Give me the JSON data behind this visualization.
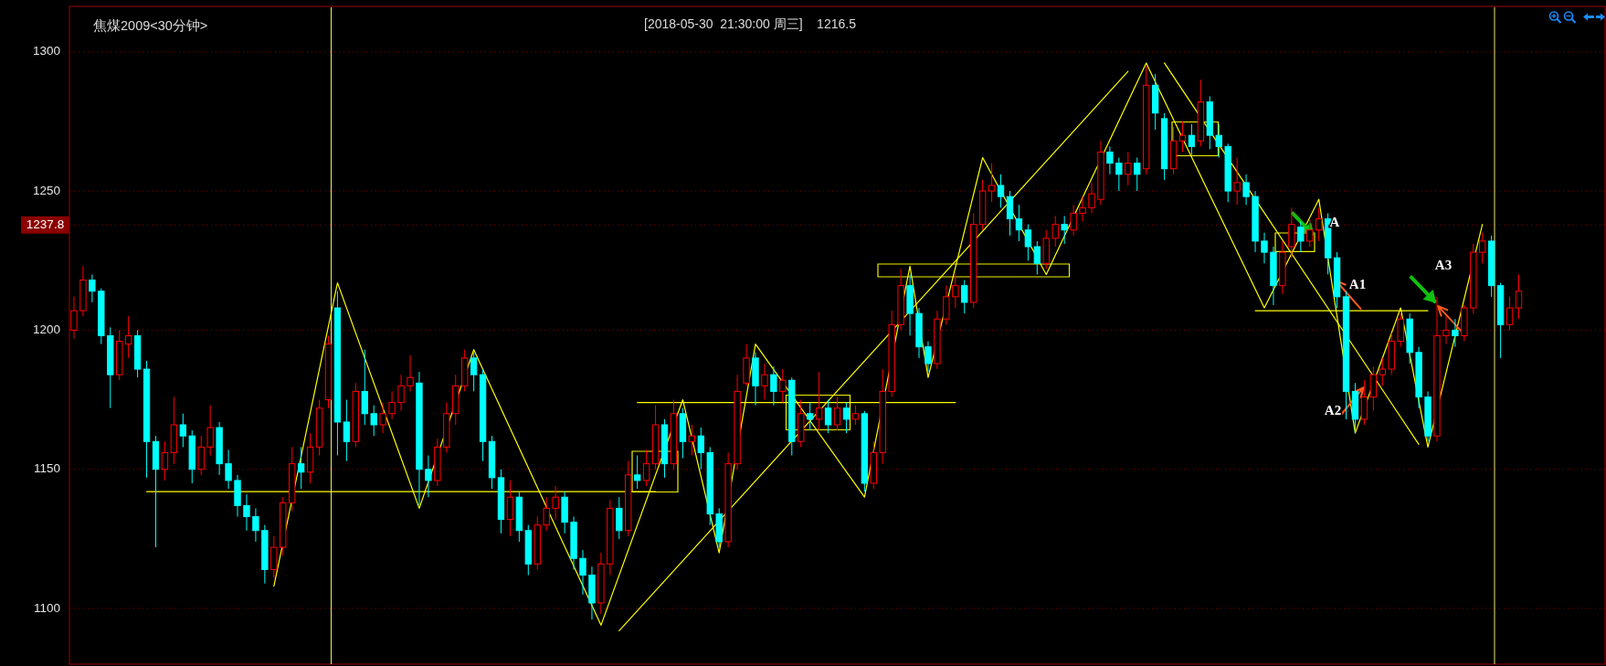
{
  "chart_data": {
    "type": "candlestick",
    "title": "焦煤2009<30分钟>",
    "subtitle": "[2018-05-30  21:30:00 周三]    1216.5",
    "categories": [
      null,
      null,
      null,
      null,
      null,
      null,
      null,
      null,
      null,
      null,
      null,
      null,
      null,
      null,
      null,
      null,
      null,
      null,
      null,
      null,
      null,
      null,
      null,
      null,
      null,
      null,
      null,
      null,
      null,
      null,
      null,
      null,
      null,
      null,
      null,
      null,
      null,
      null,
      null,
      null,
      null,
      null,
      null,
      null,
      null,
      null,
      null,
      null,
      null,
      null,
      null,
      null,
      null,
      null,
      null,
      null,
      null,
      null,
      null,
      null,
      null,
      null,
      null,
      null,
      null,
      null,
      null,
      null,
      null,
      null,
      null,
      null,
      null,
      null,
      null,
      null,
      null,
      null,
      null,
      null,
      null,
      null,
      null,
      null,
      null,
      null,
      null,
      null,
      null,
      null,
      null,
      null,
      null,
      null,
      null,
      null,
      null,
      null,
      null,
      null,
      null,
      null,
      null,
      null,
      null,
      null,
      null,
      null,
      null,
      null,
      null,
      null,
      null,
      null,
      null,
      null,
      null,
      null,
      null,
      null,
      null,
      null,
      null,
      null,
      null,
      null,
      null,
      null,
      null,
      null,
      null,
      null,
      null,
      null,
      null,
      null,
      null,
      null,
      null,
      null,
      null,
      null,
      null,
      null,
      null,
      null,
      null,
      null,
      null,
      null,
      null,
      null,
      null,
      null,
      null,
      null,
      null,
      null,
      null,
      null,
      null,
      null,
      null,
      null,
      null,
      null,
      null,
      null,
      null
    ],
    "ohlc": [
      [
        1200,
        1212,
        1197,
        1207
      ],
      [
        1207,
        1223,
        1205,
        1218
      ],
      [
        1218,
        1220,
        1210,
        1214
      ],
      [
        1214,
        1215,
        1195,
        1198
      ],
      [
        1198,
        1201,
        1172,
        1184
      ],
      [
        1184,
        1200,
        1182,
        1196
      ],
      [
        1195,
        1205,
        1190,
        1198
      ],
      [
        1198,
        1200,
        1183,
        1186
      ],
      [
        1186,
        1189,
        1147,
        1160
      ],
      [
        1160,
        1162,
        1122,
        1150
      ],
      [
        1150,
        1160,
        1146,
        1156
      ],
      [
        1156,
        1176,
        1152,
        1166
      ],
      [
        1166,
        1170,
        1158,
        1162
      ],
      [
        1162,
        1164,
        1145,
        1150
      ],
      [
        1150,
        1162,
        1148,
        1158
      ],
      [
        1158,
        1173,
        1155,
        1165
      ],
      [
        1165,
        1167,
        1148,
        1152
      ],
      [
        1152,
        1157,
        1143,
        1146
      ],
      [
        1146,
        1148,
        1133,
        1137
      ],
      [
        1137,
        1141,
        1128,
        1133
      ],
      [
        1133,
        1136,
        1124,
        1128
      ],
      [
        1128,
        1130,
        1109,
        1114
      ],
      [
        1114,
        1126,
        1111,
        1122
      ],
      [
        1122,
        1140,
        1119,
        1138
      ],
      [
        1138,
        1158,
        1135,
        1152
      ],
      [
        1152,
        1158,
        1143,
        1149
      ],
      [
        1149,
        1163,
        1145,
        1158
      ],
      [
        1158,
        1175,
        1155,
        1172
      ],
      [
        1175,
        1198,
        1172,
        1195
      ],
      [
        1208,
        1214,
        1155,
        1167
      ],
      [
        1167,
        1175,
        1153,
        1160
      ],
      [
        1160,
        1181,
        1158,
        1178
      ],
      [
        1178,
        1193,
        1166,
        1170
      ],
      [
        1170,
        1173,
        1162,
        1166
      ],
      [
        1166,
        1174,
        1163,
        1170
      ],
      [
        1170,
        1178,
        1168,
        1174
      ],
      [
        1174,
        1184,
        1171,
        1180
      ],
      [
        1180,
        1191,
        1178,
        1183
      ],
      [
        1181,
        1185,
        1137,
        1150
      ],
      [
        1150,
        1155,
        1140,
        1146
      ],
      [
        1146,
        1161,
        1144,
        1158
      ],
      [
        1158,
        1174,
        1156,
        1170
      ],
      [
        1170,
        1184,
        1166,
        1180
      ],
      [
        1180,
        1193,
        1178,
        1190
      ],
      [
        1190,
        1192,
        1178,
        1184
      ],
      [
        1184,
        1186,
        1153,
        1160
      ],
      [
        1160,
        1162,
        1143,
        1147
      ],
      [
        1147,
        1150,
        1127,
        1132
      ],
      [
        1132,
        1146,
        1126,
        1140
      ],
      [
        1140,
        1142,
        1124,
        1128
      ],
      [
        1128,
        1130,
        1112,
        1116
      ],
      [
        1116,
        1133,
        1114,
        1130
      ],
      [
        1130,
        1140,
        1128,
        1136
      ],
      [
        1136,
        1144,
        1132,
        1140
      ],
      [
        1140,
        1142,
        1127,
        1131
      ],
      [
        1131,
        1133,
        1114,
        1118
      ],
      [
        1118,
        1121,
        1105,
        1112
      ],
      [
        1112,
        1115,
        1096,
        1102
      ],
      [
        1102,
        1120,
        1098,
        1116
      ],
      [
        1116,
        1139,
        1112,
        1136
      ],
      [
        1136,
        1140,
        1125,
        1128
      ],
      [
        1128,
        1153,
        1126,
        1148
      ],
      [
        1148,
        1155,
        1143,
        1146
      ],
      [
        1146,
        1157,
        1144,
        1152
      ],
      [
        1152,
        1173,
        1150,
        1166
      ],
      [
        1166,
        1168,
        1147,
        1152
      ],
      [
        1152,
        1175,
        1150,
        1170
      ],
      [
        1170,
        1172,
        1154,
        1160
      ],
      [
        1160,
        1166,
        1155,
        1162
      ],
      [
        1162,
        1165,
        1150,
        1156
      ],
      [
        1156,
        1158,
        1130,
        1134
      ],
      [
        1134,
        1136,
        1122,
        1124
      ],
      [
        1124,
        1156,
        1122,
        1152
      ],
      [
        1152,
        1184,
        1150,
        1178
      ],
      [
        1181,
        1195,
        1180,
        1190
      ],
      [
        1190,
        1192,
        1173,
        1180
      ],
      [
        1180,
        1188,
        1175,
        1184
      ],
      [
        1184,
        1187,
        1173,
        1178
      ],
      [
        1178,
        1186,
        1174,
        1182
      ],
      [
        1182,
        1183,
        1155,
        1160
      ],
      [
        1160,
        1175,
        1158,
        1170
      ],
      [
        1170,
        1174,
        1164,
        1168
      ],
      [
        1168,
        1185,
        1164,
        1172
      ],
      [
        1172,
        1175,
        1163,
        1166
      ],
      [
        1166,
        1176,
        1164,
        1172
      ],
      [
        1172,
        1174,
        1163,
        1168
      ],
      [
        1168,
        1173,
        1166,
        1170
      ],
      [
        1170,
        1171,
        1142,
        1145
      ],
      [
        1145,
        1160,
        1143,
        1156
      ],
      [
        1156,
        1186,
        1152,
        1178
      ],
      [
        1178,
        1207,
        1176,
        1202
      ],
      [
        1202,
        1222,
        1200,
        1216
      ],
      [
        1216,
        1220,
        1198,
        1206
      ],
      [
        1206,
        1208,
        1190,
        1194
      ],
      [
        1194,
        1196,
        1185,
        1188
      ],
      [
        1188,
        1207,
        1186,
        1204
      ],
      [
        1204,
        1216,
        1202,
        1212
      ],
      [
        1212,
        1220,
        1208,
        1216
      ],
      [
        1216,
        1218,
        1206,
        1210
      ],
      [
        1210,
        1242,
        1208,
        1238
      ],
      [
        1238,
        1254,
        1236,
        1250
      ],
      [
        1250,
        1260,
        1246,
        1252
      ],
      [
        1252,
        1256,
        1244,
        1248
      ],
      [
        1248,
        1250,
        1234,
        1240
      ],
      [
        1240,
        1245,
        1232,
        1236
      ],
      [
        1236,
        1238,
        1225,
        1230
      ],
      [
        1230,
        1232,
        1220,
        1224
      ],
      [
        1224,
        1236,
        1222,
        1233
      ],
      [
        1233,
        1241,
        1230,
        1238
      ],
      [
        1238,
        1241,
        1231,
        1236
      ],
      [
        1236,
        1245,
        1234,
        1242
      ],
      [
        1242,
        1248,
        1239,
        1244
      ],
      [
        1244,
        1253,
        1242,
        1249
      ],
      [
        1247,
        1268,
        1245,
        1264
      ],
      [
        1264,
        1266,
        1256,
        1260
      ],
      [
        1260,
        1262,
        1250,
        1256
      ],
      [
        1256,
        1264,
        1252,
        1260
      ],
      [
        1260,
        1262,
        1250,
        1256
      ],
      [
        1258,
        1295,
        1256,
        1288
      ],
      [
        1288,
        1292,
        1272,
        1278
      ],
      [
        1276,
        1278,
        1254,
        1258
      ],
      [
        1258,
        1273,
        1256,
        1268
      ],
      [
        1268,
        1275,
        1264,
        1270
      ],
      [
        1270,
        1274,
        1263,
        1266
      ],
      [
        1268,
        1290,
        1266,
        1282
      ],
      [
        1282,
        1284,
        1265,
        1270
      ],
      [
        1270,
        1274,
        1262,
        1266
      ],
      [
        1266,
        1267,
        1246,
        1250
      ],
      [
        1250,
        1262,
        1245,
        1253
      ],
      [
        1253,
        1256,
        1245,
        1248
      ],
      [
        1248,
        1250,
        1228,
        1232
      ],
      [
        1232,
        1235,
        1224,
        1228
      ],
      [
        1228,
        1230,
        1209,
        1216
      ],
      [
        1216,
        1232,
        1213,
        1228
      ],
      [
        1230,
        1244,
        1226,
        1238
      ],
      [
        1237,
        1239,
        1228,
        1232
      ],
      [
        1232,
        1240,
        1230,
        1236
      ],
      [
        1236,
        1244,
        1232,
        1240
      ],
      [
        1240,
        1242,
        1220,
        1226
      ],
      [
        1226,
        1228,
        1208,
        1212
      ],
      [
        1212,
        1214,
        1168,
        1178
      ],
      [
        1178,
        1181,
        1163,
        1168
      ],
      [
        1168,
        1182,
        1166,
        1176
      ],
      [
        1176,
        1187,
        1171,
        1184
      ],
      [
        1184,
        1190,
        1180,
        1186
      ],
      [
        1186,
        1199,
        1184,
        1196
      ],
      [
        1196,
        1206,
        1194,
        1204
      ],
      [
        1204,
        1206,
        1188,
        1192
      ],
      [
        1192,
        1194,
        1172,
        1176
      ],
      [
        1176,
        1178,
        1160,
        1162
      ],
      [
        1162,
        1212,
        1160,
        1198
      ],
      [
        1198,
        1205,
        1195,
        1200
      ],
      [
        1200,
        1204,
        1194,
        1198
      ],
      [
        1198,
        1209,
        1196,
        1208
      ],
      [
        1208,
        1231,
        1206,
        1228
      ],
      [
        1228,
        1235,
        1224,
        1232
      ],
      [
        1232,
        1234,
        1212,
        1216
      ],
      [
        1216,
        1217,
        1190,
        1202
      ],
      [
        1202,
        1212,
        1200,
        1208
      ],
      [
        1208,
        1220,
        1204,
        1214
      ],
      null,
      null,
      null,
      null,
      null,
      null,
      null,
      null,
      null
    ],
    "colors": [
      "#ff0000",
      "#ff0000",
      "#00ffff",
      "#00ffff",
      "#00ffff",
      "#ff0000",
      "#ff0000",
      "#00ffff",
      "#00ffff",
      "#00ffff",
      "#ff0000",
      "#ff0000",
      "#00ffff",
      "#00ffff",
      "#ff0000",
      "#ff0000",
      "#00ffff",
      "#00ffff",
      "#00ffff",
      "#00ffff",
      "#00ffff",
      "#00ffff",
      "#ff0000",
      "#ff0000",
      "#ff0000",
      "#00ffff",
      "#ff0000",
      "#ff0000",
      "#ff0000",
      "#00ffff",
      "#00ffff",
      "#ff0000",
      "#00ffff",
      "#00ffff",
      "#ff0000",
      "#ff0000",
      "#ff0000",
      "#ff0000",
      "#00ffff",
      "#00ffff",
      "#ff0000",
      "#ff0000",
      "#ff0000",
      "#ff0000",
      "#00ffff",
      "#00ffff",
      "#00ffff",
      "#00ffff",
      "#ff0000",
      "#00ffff",
      "#00ffff",
      "#ff0000",
      "#ff0000",
      "#ff0000",
      "#00ffff",
      "#00ffff",
      "#00ffff",
      "#00ffff",
      "#ff0000",
      "#ff0000",
      "#00ffff",
      "#ff0000",
      "#00ffff",
      "#ff0000",
      "#ff0000",
      "#00ffff",
      "#ff0000",
      "#00ffff",
      "#ff0000",
      "#00ffff",
      "#00ffff",
      "#00ffff",
      "#ff0000",
      "#ff0000",
      "#ff0000",
      "#00ffff",
      "#ff0000",
      "#00ffff",
      "#ff0000",
      "#00ffff",
      "#ff0000",
      "#00ffff",
      "#ff0000",
      "#00ffff",
      "#ff0000",
      "#00ffff",
      "#ff0000",
      "#00ffff",
      "#ff0000",
      "#ff0000",
      "#ff0000",
      "#ff0000",
      "#00ffff",
      "#00ffff",
      "#00ffff",
      "#ff0000",
      "#ff0000",
      "#ff0000",
      "#00ffff",
      "#ff0000",
      "#ff0000",
      "#ff0000",
      "#00ffff",
      "#00ffff",
      "#00ffff",
      "#00ffff",
      "#00ffff",
      "#ff0000",
      "#ff0000",
      "#00ffff",
      "#ff0000",
      "#ff0000",
      "#ff0000",
      "#ff0000",
      "#00ffff",
      "#00ffff",
      "#ff0000",
      "#00ffff",
      "#ff0000",
      "#00ffff",
      "#00ffff",
      "#ff0000",
      "#ff0000",
      "#00ffff",
      "#ff0000",
      "#00ffff",
      "#00ffff",
      "#00ffff",
      "#ff0000",
      "#00ffff",
      "#00ffff",
      "#00ffff",
      "#00ffff",
      "#ff0000",
      "#ff0000",
      "#00ffff",
      "#ff0000",
      "#ff0000",
      "#00ffff",
      "#00ffff",
      "#00ffff",
      "#00ffff",
      "#ff0000",
      "#ff0000",
      "#ff0000",
      "#ff0000",
      "#ff0000",
      "#00ffff",
      "#00ffff",
      "#00ffff",
      "#ff0000",
      "#ff0000",
      "#00ffff",
      "#ff0000",
      "#ff0000",
      "#ff0000",
      "#00ffff",
      "#00ffff",
      "#ff0000",
      "#ff0000",
      null,
      null,
      null,
      null,
      null,
      null,
      null,
      null,
      null
    ],
    "ylim": [
      1080,
      1316
    ],
    "yticks": [
      1100,
      1150,
      1200,
      1250,
      1300
    ],
    "grid": "y",
    "tick_labels": "y",
    "ref_lines": [
      {
        "axis": "y",
        "value": 1237.8,
        "label": "1237.8",
        "color": "#8b0000"
      }
    ],
    "series": [
      {
        "type": "line",
        "color": "#ffff00",
        "values": [
          null,
          null,
          null,
          null,
          null,
          null,
          null,
          null,
          null,
          null,
          null,
          null,
          null,
          null,
          null,
          null,
          null,
          null,
          null,
          null,
          null,
          null,
          1108,
          null,
          null,
          null,
          null,
          null,
          null,
          1217,
          null,
          null,
          null,
          null,
          null,
          null,
          null,
          null,
          1136,
          null,
          null,
          null,
          null,
          null,
          1193,
          null,
          null,
          null,
          null,
          null,
          null,
          null,
          null,
          null,
          null,
          null,
          null,
          null,
          1094,
          null,
          null,
          null,
          null,
          null,
          null,
          null,
          null,
          1175,
          null,
          null,
          null,
          1120,
          null,
          null,
          null,
          1195,
          null,
          null,
          null,
          null,
          null,
          null,
          null,
          null,
          null,
          null,
          null,
          1140,
          null,
          null,
          null,
          null,
          1223,
          null,
          1183,
          null,
          null,
          null,
          null,
          null,
          1262,
          null,
          null,
          null,
          null,
          null,
          null,
          1220,
          null,
          null,
          null,
          null,
          null,
          null,
          null,
          null,
          null,
          null,
          1296,
          null,
          null,
          null,
          null,
          null,
          null,
          null,
          null,
          null,
          null,
          null,
          null,
          1208,
          null,
          null,
          null,
          null,
          null,
          1247,
          null,
          null,
          null,
          1163,
          null,
          null,
          null,
          null,
          1208,
          null,
          null,
          1158,
          null,
          null,
          null,
          null,
          null,
          1238,
          null,
          null,
          null,
          null,
          null,
          null,
          null,
          null,
          null,
          null,
          null,
          null,
          null
        ]
      },
      {
        "type": "line",
        "color": "#ffff00",
        "values": [
          null,
          null,
          null,
          null,
          null,
          null,
          null,
          null,
          null,
          null,
          null,
          null,
          null,
          null,
          null,
          null,
          null,
          null,
          null,
          null,
          null,
          null,
          null,
          null,
          null,
          null,
          null,
          null,
          null,
          null,
          null,
          null,
          null,
          null,
          null,
          null,
          null,
          null,
          null,
          null,
          null,
          null,
          null,
          null,
          null,
          null,
          null,
          null,
          null,
          null,
          null,
          null,
          null,
          null,
          null,
          null,
          null,
          null,
          null,
          null,
          1092,
          null,
          null,
          null,
          null,
          null,
          null,
          null,
          null,
          null,
          null,
          null,
          null,
          null,
          null,
          null,
          null,
          null,
          null,
          null,
          null,
          null,
          null,
          null,
          null,
          null,
          null,
          null,
          null,
          null,
          null,
          null,
          null,
          null,
          null,
          null,
          null,
          null,
          null,
          null,
          null,
          null,
          null,
          null,
          null,
          null,
          null,
          null,
          null,
          null,
          null,
          null,
          null,
          null,
          null,
          null,
          1293,
          null,
          null,
          null,
          null,
          null,
          null,
          null,
          null,
          null,
          null,
          null,
          null,
          null,
          null,
          null,
          null,
          null,
          null,
          null,
          null,
          null,
          null,
          null,
          null,
          null,
          null,
          null,
          null,
          null,
          null,
          null,
          null,
          null,
          null,
          null,
          null,
          null,
          null,
          null,
          null,
          null,
          null,
          null,
          null,
          null,
          null,
          null,
          null,
          null,
          null,
          null,
          null
        ]
      },
      {
        "type": "line",
        "color": "#ffff00",
        "values": [
          null,
          null,
          null,
          null,
          null,
          null,
          null,
          null,
          null,
          null,
          null,
          null,
          null,
          null,
          null,
          null,
          null,
          null,
          null,
          null,
          null,
          null,
          null,
          null,
          null,
          null,
          null,
          null,
          null,
          null,
          null,
          null,
          null,
          null,
          null,
          null,
          null,
          null,
          null,
          null,
          null,
          null,
          null,
          null,
          null,
          null,
          null,
          null,
          null,
          null,
          null,
          null,
          null,
          null,
          null,
          null,
          null,
          null,
          null,
          null,
          null,
          null,
          null,
          null,
          null,
          null,
          null,
          null,
          null,
          null,
          null,
          null,
          null,
          null,
          null,
          null,
          null,
          null,
          null,
          null,
          null,
          null,
          null,
          null,
          null,
          null,
          null,
          null,
          null,
          null,
          null,
          null,
          null,
          null,
          null,
          null,
          null,
          null,
          null,
          null,
          null,
          null,
          null,
          null,
          null,
          null,
          null,
          null,
          null,
          null,
          null,
          null,
          null,
          null,
          null,
          null,
          null,
          null,
          null,
          null,
          1296,
          null,
          null,
          null,
          null,
          null,
          null,
          null,
          null,
          null,
          null,
          null,
          null,
          null,
          null,
          null,
          null,
          null,
          null,
          null,
          null,
          null,
          null,
          null,
          null,
          null,
          null,
          null,
          1159,
          null,
          null,
          null,
          null,
          null,
          null,
          null,
          null,
          null,
          null,
          null,
          null,
          null,
          null,
          null,
          null,
          null,
          null,
          null,
          null
        ]
      },
      {
        "type": "line",
        "color": "#ffff00",
        "values": [
          null,
          null,
          null,
          null,
          null,
          null,
          null,
          null,
          1142,
          null,
          null,
          null,
          null,
          null,
          null,
          null,
          null,
          null,
          null,
          null,
          null,
          null,
          null,
          null,
          null,
          null,
          null,
          null,
          null,
          null,
          null,
          null,
          null,
          null,
          null,
          null,
          null,
          null,
          null,
          null,
          null,
          null,
          null,
          null,
          null,
          null,
          null,
          null,
          null,
          null,
          null,
          null,
          null,
          null,
          null,
          null,
          null,
          null,
          null,
          null,
          null,
          null,
          null,
          null,
          1142,
          null,
          null,
          null,
          null,
          null,
          null,
          null,
          null,
          null,
          null,
          null,
          null,
          null,
          null,
          null,
          null,
          null,
          null,
          null,
          null,
          null,
          null,
          null,
          null,
          null,
          null,
          null,
          null,
          null,
          null,
          null,
          null,
          null,
          null,
          null,
          null,
          null,
          null,
          null,
          null,
          null,
          null,
          null,
          null,
          null,
          null,
          null,
          null,
          null,
          null,
          null,
          null,
          null,
          null,
          null,
          null,
          null,
          null,
          null,
          null,
          null,
          null,
          null,
          null,
          null,
          null,
          null,
          null,
          null,
          null,
          null,
          null,
          null,
          null,
          null,
          null,
          null,
          null,
          null,
          null,
          null,
          null,
          null,
          null,
          null,
          null,
          null,
          null,
          null,
          null,
          null,
          null,
          null,
          null,
          null,
          null,
          null,
          null,
          null,
          null,
          null,
          null,
          null,
          null
        ]
      },
      {
        "type": "line",
        "color": "#ffff00",
        "values": [
          null,
          null,
          null,
          null,
          null,
          null,
          null,
          null,
          null,
          null,
          null,
          null,
          null,
          null,
          null,
          null,
          null,
          null,
          null,
          null,
          null,
          null,
          null,
          null,
          null,
          null,
          null,
          null,
          null,
          null,
          null,
          null,
          null,
          null,
          null,
          null,
          null,
          null,
          null,
          null,
          null,
          null,
          null,
          null,
          null,
          null,
          null,
          null,
          null,
          null,
          null,
          null,
          null,
          null,
          null,
          null,
          null,
          null,
          null,
          null,
          null,
          null,
          1174,
          null,
          null,
          null,
          null,
          null,
          null,
          null,
          null,
          null,
          null,
          null,
          null,
          null,
          null,
          null,
          null,
          null,
          null,
          null,
          null,
          null,
          null,
          null,
          null,
          null,
          null,
          null,
          null,
          null,
          null,
          null,
          null,
          null,
          null,
          1174,
          null,
          null,
          null,
          null,
          null,
          null,
          null,
          null,
          null,
          null,
          null,
          null,
          null,
          null,
          null,
          null,
          null,
          null,
          null,
          null,
          null,
          null,
          null,
          null,
          null,
          null,
          null,
          null,
          null,
          null,
          null,
          null,
          null,
          null,
          null,
          null,
          null,
          null,
          null,
          null,
          null,
          null,
          null,
          null,
          null,
          null,
          null,
          null,
          null,
          null,
          null,
          null,
          null,
          null,
          null,
          null,
          null,
          null,
          null,
          null,
          null,
          null,
          null,
          null,
          null,
          null,
          null,
          null,
          null,
          null,
          null
        ]
      },
      {
        "type": "line",
        "color": "#ffff00",
        "values": [
          null,
          null,
          null,
          null,
          null,
          null,
          null,
          null,
          null,
          null,
          null,
          null,
          null,
          null,
          null,
          null,
          null,
          null,
          null,
          null,
          null,
          null,
          null,
          null,
          null,
          null,
          null,
          null,
          null,
          null,
          null,
          null,
          null,
          null,
          null,
          null,
          null,
          null,
          null,
          null,
          null,
          null,
          null,
          null,
          null,
          null,
          null,
          null,
          null,
          null,
          null,
          null,
          null,
          null,
          null,
          null,
          null,
          null,
          null,
          null,
          null,
          null,
          null,
          null,
          null,
          null,
          null,
          null,
          null,
          null,
          null,
          null,
          null,
          null,
          null,
          null,
          null,
          null,
          null,
          null,
          null,
          null,
          null,
          null,
          null,
          null,
          null,
          null,
          null,
          null,
          null,
          null,
          null,
          null,
          null,
          null,
          null,
          null,
          null,
          null,
          null,
          null,
          null,
          null,
          null,
          null,
          null,
          null,
          null,
          null,
          null,
          null,
          null,
          null,
          null,
          null,
          null,
          null,
          null,
          null,
          null,
          null,
          null,
          null,
          null,
          null,
          null,
          null,
          null,
          null,
          1207,
          null,
          null,
          null,
          null,
          null,
          null,
          null,
          null,
          null,
          null,
          null,
          null,
          null,
          null,
          null,
          null,
          null,
          null,
          1207,
          null,
          null,
          null,
          null,
          null,
          null,
          null,
          null,
          null,
          null,
          null,
          null,
          null,
          null,
          null,
          null,
          null,
          null,
          null
        ]
      }
    ],
    "annotations": [
      "A",
      "A1",
      "A2",
      "A3"
    ]
  }
}
